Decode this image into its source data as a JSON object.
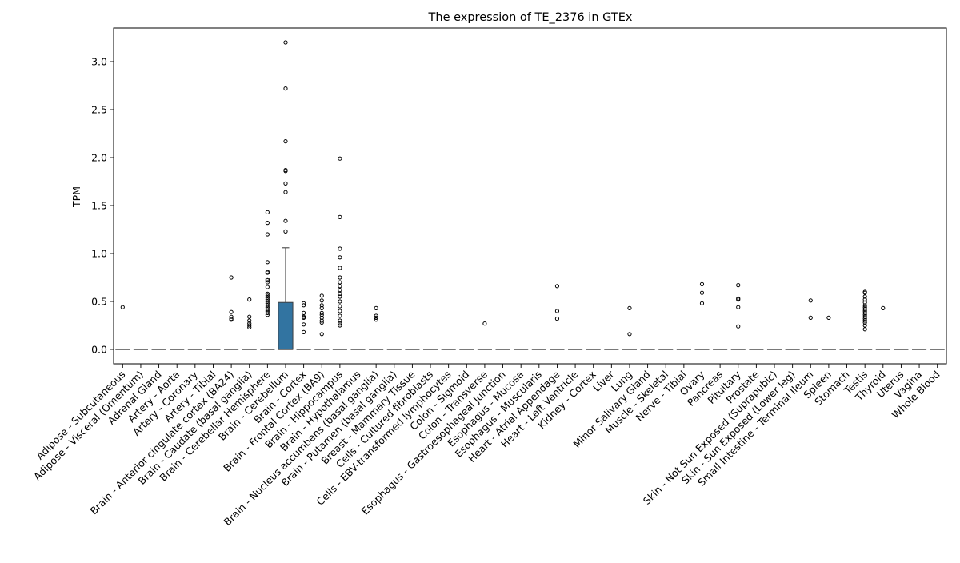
{
  "chart_data": {
    "type": "box",
    "title": "The expression of TE_2376 in GTEx",
    "ylabel": "TPM",
    "xlabel": "",
    "ylim": [
      -0.15,
      3.35
    ],
    "yticks": [
      0.0,
      0.5,
      1.0,
      1.5,
      2.0,
      2.5,
      3.0
    ],
    "ytick_labels": [
      "0.0",
      "0.5",
      "1.0",
      "1.5",
      "2.0",
      "2.5",
      "3.0"
    ],
    "grid": false,
    "box_color": "#3274a1",
    "categories": [
      "Adipose - Subcutaneous",
      "Adipose - Visceral (Omentum)",
      "Adrenal Gland",
      "Artery - Aorta",
      "Artery - Coronary",
      "Artery - Tibial",
      "Brain - Anterior cingulate cortex (BA24)",
      "Brain - Caudate (basal ganglia)",
      "Brain - Cerebellar Hemisphere",
      "Brain - Cerebellum",
      "Brain - Cortex",
      "Brain - Frontal Cortex (BA9)",
      "Brain - Hippocampus",
      "Brain - Hypothalamus",
      "Brain - Nucleus accumbens (basal ganglia)",
      "Brain - Putamen (basal ganglia)",
      "Breast - Mammary Tissue",
      "Cells - Cultured fibroblasts",
      "Cells - EBV-transformed lymphocytes",
      "Colon - Sigmoid",
      "Colon - Transverse",
      "Esophagus - Gastroesophageal Junction",
      "Esophagus - Mucosa",
      "Esophagus - Muscularis",
      "Heart - Atrial Appendage",
      "Heart - Left Ventricle",
      "Kidney - Cortex",
      "Liver",
      "Lung",
      "Minor Salivary Gland",
      "Muscle - Skeletal",
      "Nerve - Tibial",
      "Ovary",
      "Pancreas",
      "Pituitary",
      "Prostate",
      "Skin - Not Sun Exposed (Suprapubic)",
      "Skin - Sun Exposed (Lower leg)",
      "Small Intestine - Terminal Ileum",
      "Spleen",
      "Stomach",
      "Testis",
      "Thyroid",
      "Uterus",
      "Vagina",
      "Whole Blood"
    ],
    "boxes": [
      {
        "q1": 0,
        "median": 0,
        "q3": 0,
        "whisker_low": 0,
        "whisker_high": 0,
        "outliers": [
          0.44
        ]
      },
      {
        "q1": 0,
        "median": 0,
        "q3": 0,
        "whisker_low": 0,
        "whisker_high": 0,
        "outliers": []
      },
      {
        "q1": 0,
        "median": 0,
        "q3": 0,
        "whisker_low": 0,
        "whisker_high": 0,
        "outliers": []
      },
      {
        "q1": 0,
        "median": 0,
        "q3": 0,
        "whisker_low": 0,
        "whisker_high": 0,
        "outliers": []
      },
      {
        "q1": 0,
        "median": 0,
        "q3": 0,
        "whisker_low": 0,
        "whisker_high": 0,
        "outliers": []
      },
      {
        "q1": 0,
        "median": 0,
        "q3": 0,
        "whisker_low": 0,
        "whisker_high": 0,
        "outliers": []
      },
      {
        "q1": 0,
        "median": 0,
        "q3": 0,
        "whisker_low": 0,
        "whisker_high": 0,
        "outliers": [
          0.75,
          0.39,
          0.34,
          0.32,
          0.31
        ]
      },
      {
        "q1": 0,
        "median": 0,
        "q3": 0,
        "whisker_low": 0,
        "whisker_high": 0,
        "outliers": [
          0.52,
          0.34,
          0.3,
          0.27,
          0.25,
          0.23
        ]
      },
      {
        "q1": 0,
        "median": 0,
        "q3": 0,
        "whisker_low": 0,
        "whisker_high": 0,
        "outliers": [
          1.43,
          1.32,
          1.2,
          0.91,
          0.81,
          0.8,
          0.73,
          0.72,
          0.7,
          0.65,
          0.58,
          0.56,
          0.54,
          0.52,
          0.5,
          0.48,
          0.46,
          0.44,
          0.42,
          0.4,
          0.38,
          0.36
        ]
      },
      {
        "q1": 0,
        "median": 0,
        "q3": 0.49,
        "whisker_low": 0,
        "whisker_high": 1.06,
        "outliers": [
          3.2,
          2.72,
          2.17,
          1.87,
          1.86,
          1.73,
          1.64,
          1.34,
          1.23
        ]
      },
      {
        "q1": 0,
        "median": 0,
        "q3": 0,
        "whisker_low": 0,
        "whisker_high": 0,
        "outliers": [
          0.48,
          0.46,
          0.38,
          0.34,
          0.33,
          0.26,
          0.18
        ]
      },
      {
        "q1": 0,
        "median": 0,
        "q3": 0,
        "whisker_low": 0,
        "whisker_high": 0,
        "outliers": [
          0.56,
          0.51,
          0.46,
          0.43,
          0.38,
          0.36,
          0.33,
          0.3,
          0.28,
          0.16
        ]
      },
      {
        "q1": 0,
        "median": 0,
        "q3": 0,
        "whisker_low": 0,
        "whisker_high": 0,
        "outliers": [
          1.99,
          1.38,
          1.05,
          0.96,
          0.85,
          0.75,
          0.7,
          0.66,
          0.62,
          0.58,
          0.55,
          0.5,
          0.45,
          0.4,
          0.35,
          0.3,
          0.27,
          0.25
        ]
      },
      {
        "q1": 0,
        "median": 0,
        "q3": 0,
        "whisker_low": 0,
        "whisker_high": 0,
        "outliers": []
      },
      {
        "q1": 0,
        "median": 0,
        "q3": 0,
        "whisker_low": 0,
        "whisker_high": 0,
        "outliers": [
          0.43,
          0.35,
          0.33,
          0.31
        ]
      },
      {
        "q1": 0,
        "median": 0,
        "q3": 0,
        "whisker_low": 0,
        "whisker_high": 0,
        "outliers": []
      },
      {
        "q1": 0,
        "median": 0,
        "q3": 0,
        "whisker_low": 0,
        "whisker_high": 0,
        "outliers": []
      },
      {
        "q1": 0,
        "median": 0,
        "q3": 0,
        "whisker_low": 0,
        "whisker_high": 0,
        "outliers": []
      },
      {
        "q1": 0,
        "median": 0,
        "q3": 0,
        "whisker_low": 0,
        "whisker_high": 0,
        "outliers": []
      },
      {
        "q1": 0,
        "median": 0,
        "q3": 0,
        "whisker_low": 0,
        "whisker_high": 0,
        "outliers": []
      },
      {
        "q1": 0,
        "median": 0,
        "q3": 0,
        "whisker_low": 0,
        "whisker_high": 0,
        "outliers": [
          0.27
        ]
      },
      {
        "q1": 0,
        "median": 0,
        "q3": 0,
        "whisker_low": 0,
        "whisker_high": 0,
        "outliers": []
      },
      {
        "q1": 0,
        "median": 0,
        "q3": 0,
        "whisker_low": 0,
        "whisker_high": 0,
        "outliers": []
      },
      {
        "q1": 0,
        "median": 0,
        "q3": 0,
        "whisker_low": 0,
        "whisker_high": 0,
        "outliers": []
      },
      {
        "q1": 0,
        "median": 0,
        "q3": 0,
        "whisker_low": 0,
        "whisker_high": 0,
        "outliers": [
          0.66,
          0.4,
          0.32
        ]
      },
      {
        "q1": 0,
        "median": 0,
        "q3": 0,
        "whisker_low": 0,
        "whisker_high": 0,
        "outliers": []
      },
      {
        "q1": 0,
        "median": 0,
        "q3": 0,
        "whisker_low": 0,
        "whisker_high": 0,
        "outliers": []
      },
      {
        "q1": 0,
        "median": 0,
        "q3": 0,
        "whisker_low": 0,
        "whisker_high": 0,
        "outliers": []
      },
      {
        "q1": 0,
        "median": 0,
        "q3": 0,
        "whisker_low": 0,
        "whisker_high": 0,
        "outliers": [
          0.43,
          0.16
        ]
      },
      {
        "q1": 0,
        "median": 0,
        "q3": 0,
        "whisker_low": 0,
        "whisker_high": 0,
        "outliers": []
      },
      {
        "q1": 0,
        "median": 0,
        "q3": 0,
        "whisker_low": 0,
        "whisker_high": 0,
        "outliers": []
      },
      {
        "q1": 0,
        "median": 0,
        "q3": 0,
        "whisker_low": 0,
        "whisker_high": 0,
        "outliers": []
      },
      {
        "q1": 0,
        "median": 0,
        "q3": 0,
        "whisker_low": 0,
        "whisker_high": 0,
        "outliers": [
          0.68,
          0.59,
          0.48
        ]
      },
      {
        "q1": 0,
        "median": 0,
        "q3": 0,
        "whisker_low": 0,
        "whisker_high": 0,
        "outliers": []
      },
      {
        "q1": 0,
        "median": 0,
        "q3": 0,
        "whisker_low": 0,
        "whisker_high": 0,
        "outliers": [
          0.67,
          0.53,
          0.52,
          0.44,
          0.24
        ]
      },
      {
        "q1": 0,
        "median": 0,
        "q3": 0,
        "whisker_low": 0,
        "whisker_high": 0,
        "outliers": []
      },
      {
        "q1": 0,
        "median": 0,
        "q3": 0,
        "whisker_low": 0,
        "whisker_high": 0,
        "outliers": []
      },
      {
        "q1": 0,
        "median": 0,
        "q3": 0,
        "whisker_low": 0,
        "whisker_high": 0,
        "outliers": []
      },
      {
        "q1": 0,
        "median": 0,
        "q3": 0,
        "whisker_low": 0,
        "whisker_high": 0,
        "outliers": [
          0.51,
          0.33
        ]
      },
      {
        "q1": 0,
        "median": 0,
        "q3": 0,
        "whisker_low": 0,
        "whisker_high": 0,
        "outliers": [
          0.33
        ]
      },
      {
        "q1": 0,
        "median": 0,
        "q3": 0,
        "whisker_low": 0,
        "whisker_high": 0,
        "outliers": []
      },
      {
        "q1": 0,
        "median": 0,
        "q3": 0,
        "whisker_low": 0,
        "whisker_high": 0,
        "outliers": [
          0.6,
          0.59,
          0.55,
          0.52,
          0.49,
          0.46,
          0.44,
          0.42,
          0.4,
          0.38,
          0.36,
          0.34,
          0.32,
          0.3,
          0.28,
          0.25,
          0.21
        ]
      },
      {
        "q1": 0,
        "median": 0,
        "q3": 0,
        "whisker_low": 0,
        "whisker_high": 0,
        "outliers": [
          0.43
        ]
      },
      {
        "q1": 0,
        "median": 0,
        "q3": 0,
        "whisker_low": 0,
        "whisker_high": 0,
        "outliers": []
      },
      {
        "q1": 0,
        "median": 0,
        "q3": 0,
        "whisker_low": 0,
        "whisker_high": 0,
        "outliers": []
      },
      {
        "q1": 0,
        "median": 0,
        "q3": 0,
        "whisker_low": 0,
        "whisker_high": 0,
        "outliers": []
      }
    ]
  }
}
